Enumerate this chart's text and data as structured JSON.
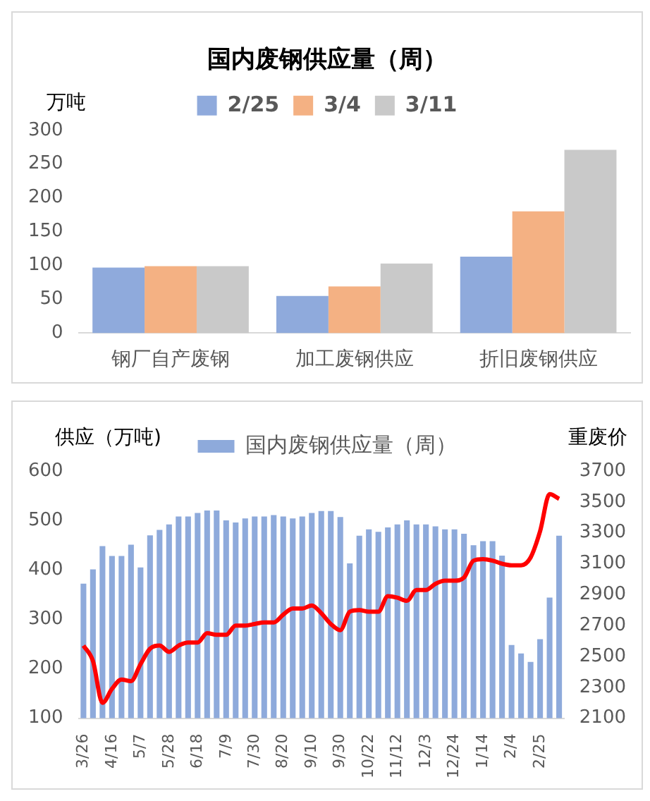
{
  "chart_data": [
    {
      "type": "bar",
      "title": "国内废钢供应量（周）",
      "ylabel": "万吨",
      "categories": [
        "钢厂自产废钢",
        "加工废钢供应",
        "折旧废钢供应"
      ],
      "series": [
        {
          "name": "2/25",
          "color": "#8faadc",
          "values": [
            97,
            55,
            113
          ]
        },
        {
          "name": "3/4",
          "color": "#f4b183",
          "values": [
            99,
            69,
            180
          ]
        },
        {
          "name": "3/11",
          "color": "#c9c9c9",
          "values": [
            99,
            103,
            271
          ]
        }
      ],
      "ylim": [
        0,
        300
      ],
      "yticks": [
        0,
        50,
        100,
        150,
        200,
        250,
        300
      ],
      "grid": false,
      "legend": "top"
    },
    {
      "type": "bar",
      "ylabel": "供应（万吨)",
      "y2label": "重废价",
      "categories": [
        "3/26",
        null,
        null,
        "4/16",
        null,
        null,
        "5/7",
        null,
        null,
        "5/28",
        null,
        null,
        "6/18",
        null,
        null,
        "7/9",
        null,
        null,
        "7/30",
        null,
        null,
        "8/20",
        null,
        null,
        "9/10",
        null,
        null,
        "9/30",
        null,
        null,
        "10/22",
        null,
        null,
        "11/12",
        null,
        null,
        "12/3",
        null,
        null,
        "12/24",
        null,
        null,
        "1/14",
        null,
        null,
        "2/4",
        null,
        null,
        "2/25",
        null,
        null
      ],
      "series": [
        {
          "name": "国内废钢供应量（周）",
          "type": "bar",
          "color": "#8eaadb",
          "values": [
            372,
            401,
            448,
            428,
            428,
            451,
            405,
            470,
            481,
            492,
            508,
            508,
            515,
            520,
            520,
            500,
            496,
            504,
            508,
            508,
            511,
            508,
            504,
            508,
            515,
            519,
            519,
            507,
            413,
            469,
            482,
            477,
            486,
            492,
            500,
            492,
            492,
            488,
            482,
            482,
            473,
            450,
            458,
            458,
            429,
            248,
            231,
            214,
            260,
            344,
            469
          ]
        },
        {
          "type": "line",
          "axis": "y2",
          "color": "#ff0000",
          "values": [
            2570,
            2470,
            2200,
            2290,
            2350,
            2340,
            2450,
            2550,
            2570,
            2530,
            2570,
            2590,
            2590,
            2650,
            2640,
            2640,
            2700,
            2700,
            2710,
            2720,
            2720,
            2770,
            2810,
            2810,
            2830,
            2780,
            2710,
            2670,
            2790,
            2800,
            2790,
            2790,
            2890,
            2880,
            2860,
            2930,
            2930,
            2970,
            2990,
            2990,
            3010,
            3120,
            3130,
            3120,
            3100,
            3090,
            3090,
            3140,
            3310,
            3550,
            3520
          ]
        }
      ],
      "ylim": [
        100,
        600
      ],
      "yticks": [
        100,
        200,
        300,
        400,
        500,
        600
      ],
      "y2lim": [
        2100,
        3700
      ],
      "y2ticks": [
        2100,
        2300,
        2500,
        2700,
        2900,
        3100,
        3300,
        3500,
        3700
      ],
      "grid": false,
      "legend": "top"
    }
  ]
}
